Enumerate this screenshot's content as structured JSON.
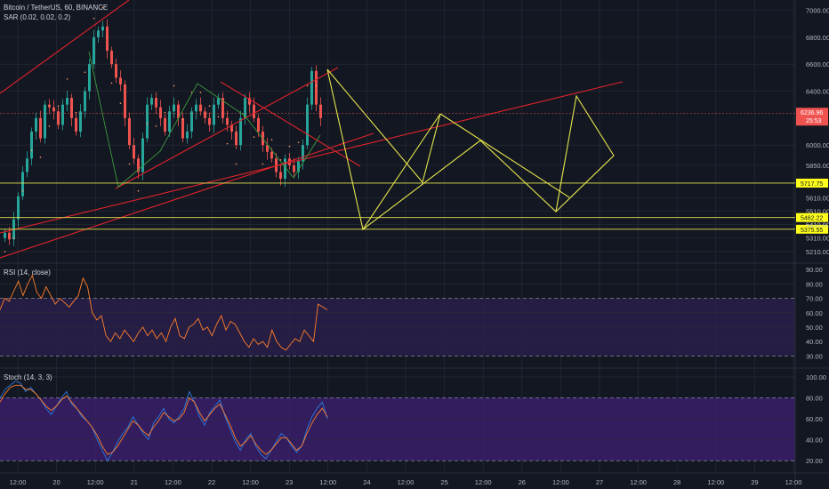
{
  "header": {
    "symbol_label": "Bitcoin / TetherUS, 60, BINANCE",
    "sar_label": "SAR (0.02, 0.02, 0.2)",
    "rsi_label": "RSI (14, close)",
    "stoch_label": "Stoch (14, 3, 3)"
  },
  "colors": {
    "background": "#131722",
    "grid": "#2a2e39",
    "candle_up": "#26a69a",
    "candle_down": "#ef5350",
    "trend_red": "#e0232b",
    "pattern_yellow": "#e6e64c",
    "pattern_green": "#3d9a3d",
    "rsi_band": "#2a1f4a",
    "rsi_line": "#ff7f29",
    "stoch_band": "#3a1e6a",
    "stoch_k": "#2a7bde",
    "stoch_d": "#ff7f29",
    "price_tag_red": "#ef5350",
    "level_tag_yellow": "#ffff1a"
  },
  "chart_data": [
    {
      "type": "candlestick",
      "panel": "price",
      "title": "Bitcoin / TetherUS, 60, BINANCE",
      "y_ticks": [
        "7000.00",
        "6800.00",
        "6600.00",
        "6400.00",
        "6000.00",
        "5850.00",
        "5610.00",
        "5510.00",
        "5410.00",
        "5310.00",
        "5210.00"
      ],
      "ylim": [
        5150,
        7050
      ],
      "current_price": "6236.96",
      "countdown": "25:53",
      "levels": [
        {
          "value": "5717.75",
          "price": 5717.75
        },
        {
          "value": "5462.22",
          "price": 5462.22
        },
        {
          "value": "5375.55",
          "price": 5375.55
        }
      ],
      "extra_level_label": "5410.00",
      "series": [
        {
          "name": "OHLC",
          "close": [
            5350,
            5300,
            5450,
            5620,
            5800,
            5900,
            6100,
            6200,
            6050,
            6300,
            6280,
            6250,
            6150,
            6300,
            6350,
            6200,
            6100,
            6250,
            6400,
            6600,
            6800,
            6850,
            6880,
            6700,
            6600,
            6500,
            6450,
            6200,
            6000,
            5900,
            5800,
            6050,
            6300,
            6350,
            6280,
            6200,
            6100,
            6250,
            6300,
            6200,
            6050,
            6100,
            6250,
            6300,
            6250,
            6200,
            6150,
            6300,
            6350,
            6200,
            6150,
            6100,
            6000,
            6200,
            6350,
            6300,
            6200,
            6100,
            6000,
            5950,
            5900,
            5800,
            5750,
            5900,
            5850,
            5800,
            5880,
            6000,
            6300,
            6550,
            6300,
            6200
          ]
        }
      ]
    },
    {
      "type": "line",
      "panel": "rsi",
      "title": "RSI (14, close)",
      "y_ticks": [
        "90.00",
        "80.00",
        "70.00",
        "60.00",
        "50.00",
        "40.00",
        "30.00"
      ],
      "ylim": [
        24,
        92
      ],
      "band": [
        30,
        70
      ],
      "series": [
        {
          "name": "RSI",
          "values": [
            62,
            70,
            68,
            75,
            82,
            72,
            80,
            86,
            74,
            70,
            78,
            72,
            66,
            70,
            67,
            64,
            68,
            72,
            84,
            78,
            60,
            55,
            58,
            44,
            40,
            46,
            42,
            48,
            44,
            40,
            46,
            50,
            44,
            48,
            42,
            46,
            40,
            50,
            56,
            44,
            42,
            50,
            52,
            56,
            48,
            50,
            44,
            52,
            58,
            48,
            54,
            52,
            46,
            40,
            36,
            42,
            38,
            40,
            36,
            48,
            40,
            36,
            34,
            38,
            42,
            40,
            48,
            44,
            40,
            66,
            64,
            62
          ]
        }
      ]
    },
    {
      "type": "line",
      "panel": "stoch",
      "title": "Stoch (14, 3, 3)",
      "y_ticks": [
        "100.00",
        "80.00",
        "60.00",
        "40.00",
        "20.00"
      ],
      "ylim": [
        10,
        105
      ],
      "band": [
        20,
        80
      ],
      "series": [
        {
          "name": "K",
          "values": [
            80,
            88,
            92,
            96,
            94,
            86,
            90,
            84,
            78,
            70,
            64,
            72,
            80,
            86,
            74,
            70,
            62,
            58,
            52,
            40,
            30,
            20,
            28,
            38,
            46,
            52,
            62,
            54,
            46,
            40,
            56,
            62,
            70,
            60,
            56,
            62,
            70,
            86,
            76,
            62,
            54,
            66,
            72,
            78,
            62,
            50,
            38,
            30,
            40,
            46,
            34,
            26,
            22,
            30,
            38,
            46,
            42,
            34,
            28,
            34,
            50,
            62,
            70,
            76,
            60
          ]
        },
        {
          "name": "D",
          "values": [
            76,
            84,
            90,
            92,
            92,
            88,
            88,
            84,
            78,
            72,
            68,
            72,
            78,
            82,
            76,
            70,
            64,
            58,
            52,
            44,
            34,
            26,
            28,
            34,
            42,
            50,
            58,
            54,
            48,
            44,
            52,
            58,
            66,
            62,
            58,
            60,
            66,
            80,
            76,
            66,
            58,
            64,
            70,
            74,
            64,
            54,
            42,
            34,
            38,
            44,
            36,
            30,
            26,
            30,
            36,
            42,
            42,
            36,
            30,
            34,
            46,
            56,
            64,
            70,
            62
          ]
        }
      ]
    }
  ],
  "x_axis": {
    "labels": [
      "12:00",
      "20",
      "12:00",
      "21",
      "12:00",
      "22",
      "12:00",
      "23",
      "12:00",
      "24",
      "12:00",
      "25",
      "12:00",
      "26",
      "12:00",
      "27",
      "12:00",
      "28",
      "12:00",
      "29",
      "12:00"
    ]
  },
  "drawings": {
    "green_pattern_label": "green zigzag",
    "red_trendlines": 5,
    "yellow_projection": "zigzag projection"
  }
}
